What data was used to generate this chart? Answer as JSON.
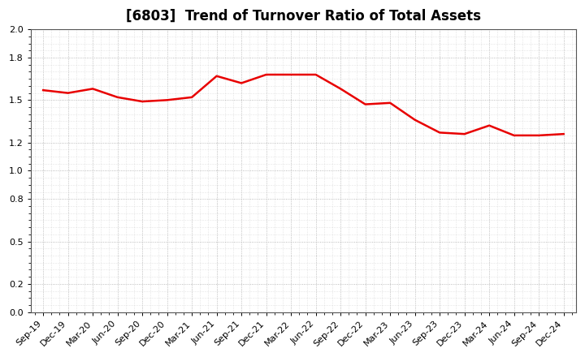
{
  "title": "[6803]  Trend of Turnover Ratio of Total Assets",
  "labels": [
    "Sep-19",
    "Dec-19",
    "Mar-20",
    "Jun-20",
    "Sep-20",
    "Dec-20",
    "Mar-21",
    "Jun-21",
    "Sep-21",
    "Dec-21",
    "Mar-22",
    "Jun-22",
    "Sep-22",
    "Dec-22",
    "Mar-23",
    "Jun-23",
    "Sep-23",
    "Dec-23",
    "Mar-24",
    "Jun-24",
    "Sep-24",
    "Dec-24"
  ],
  "values": [
    1.57,
    1.55,
    1.58,
    1.52,
    1.49,
    1.5,
    1.52,
    1.67,
    1.62,
    1.68,
    1.68,
    1.68,
    1.58,
    1.47,
    1.48,
    1.36,
    1.27,
    1.26,
    1.32,
    1.25,
    1.25,
    1.26
  ],
  "line_color": "#e80000",
  "line_width": 1.8,
  "ylim": [
    0.0,
    2.0
  ],
  "yticks": [
    0.0,
    0.2,
    0.5,
    0.8,
    1.0,
    1.2,
    1.5,
    1.8,
    2.0
  ],
  "background_color": "#ffffff",
  "grid_color": "#aaaaaa",
  "title_fontsize": 12,
  "tick_fontsize": 8
}
